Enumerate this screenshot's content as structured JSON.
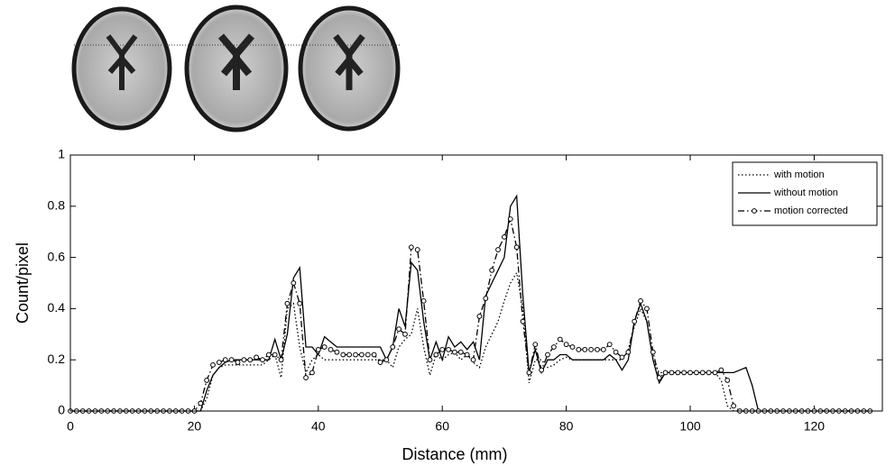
{
  "chart_data": {
    "type": "line",
    "xlabel": "Distance (mm)",
    "ylabel": "Count/pixel",
    "x": [
      0,
      1,
      2,
      3,
      4,
      5,
      6,
      7,
      8,
      9,
      10,
      11,
      12,
      13,
      14,
      15,
      16,
      17,
      18,
      19,
      20,
      21,
      22,
      23,
      24,
      25,
      26,
      27,
      28,
      29,
      30,
      31,
      32,
      33,
      34,
      35,
      36,
      37,
      38,
      39,
      40,
      41,
      42,
      43,
      44,
      45,
      46,
      47,
      48,
      49,
      50,
      51,
      52,
      53,
      54,
      55,
      56,
      57,
      58,
      59,
      60,
      61,
      62,
      63,
      64,
      65,
      66,
      67,
      68,
      69,
      70,
      71,
      72,
      73,
      74,
      75,
      76,
      77,
      78,
      79,
      80,
      81,
      82,
      83,
      84,
      85,
      86,
      87,
      88,
      89,
      90,
      91,
      92,
      93,
      94,
      95,
      96,
      97,
      98,
      99,
      100,
      101,
      102,
      103,
      104,
      105,
      106,
      107,
      108,
      109,
      110,
      111,
      112,
      113,
      114,
      115,
      116,
      117,
      118,
      119,
      120,
      121,
      122,
      123,
      124,
      125,
      126,
      127,
      128,
      129
    ],
    "series": [
      {
        "name": "with motion",
        "color": "#000000",
        "style": "dotted",
        "marker": "none",
        "values": [
          0,
          0,
          0,
          0,
          0,
          0,
          0,
          0,
          0,
          0,
          0,
          0,
          0,
          0,
          0,
          0,
          0,
          0,
          0,
          0,
          0,
          0,
          0.05,
          0.14,
          0.17,
          0.18,
          0.18,
          0.18,
          0.18,
          0.18,
          0.18,
          0.18,
          0.2,
          0.22,
          0.13,
          0.4,
          0.42,
          0.25,
          0.15,
          0.2,
          0.22,
          0.2,
          0.2,
          0.2,
          0.2,
          0.2,
          0.2,
          0.2,
          0.2,
          0.2,
          0.2,
          0.2,
          0.17,
          0.25,
          0.28,
          0.3,
          0.4,
          0.25,
          0.14,
          0.22,
          0.2,
          0.22,
          0.23,
          0.2,
          0.22,
          0.19,
          0.17,
          0.25,
          0.3,
          0.35,
          0.43,
          0.5,
          0.54,
          0.4,
          0.11,
          0.2,
          0.2,
          0.17,
          0.18,
          0.2,
          0.21,
          0.2,
          0.2,
          0.2,
          0.2,
          0.2,
          0.2,
          0.2,
          0.2,
          0.2,
          0.24,
          0.33,
          0.4,
          0.35,
          0.2,
          0.15,
          0.15,
          0.15,
          0.15,
          0.15,
          0.15,
          0.15,
          0.15,
          0.15,
          0.15,
          0.12,
          0.02,
          0,
          0,
          0,
          0,
          0,
          0,
          0,
          0,
          0,
          0,
          0,
          0,
          0,
          0,
          0,
          0,
          0,
          0,
          0,
          0,
          0,
          0,
          0
        ]
      },
      {
        "name": "without motion",
        "color": "#000000",
        "style": "solid",
        "marker": "none",
        "values": [
          0,
          0,
          0,
          0,
          0,
          0,
          0,
          0,
          0,
          0,
          0,
          0,
          0,
          0,
          0,
          0,
          0,
          0,
          0,
          0,
          0,
          0,
          0.08,
          0.14,
          0.17,
          0.19,
          0.2,
          0.2,
          0.2,
          0.2,
          0.2,
          0.2,
          0.2,
          0.28,
          0.2,
          0.3,
          0.52,
          0.56,
          0.25,
          0.25,
          0.22,
          0.29,
          0.27,
          0.25,
          0.25,
          0.25,
          0.25,
          0.25,
          0.25,
          0.25,
          0.25,
          0.2,
          0.25,
          0.4,
          0.33,
          0.58,
          0.55,
          0.35,
          0.2,
          0.27,
          0.2,
          0.29,
          0.25,
          0.27,
          0.24,
          0.27,
          0.2,
          0.45,
          0.5,
          0.55,
          0.6,
          0.8,
          0.84,
          0.45,
          0.15,
          0.24,
          0.15,
          0.2,
          0.2,
          0.22,
          0.22,
          0.2,
          0.2,
          0.2,
          0.2,
          0.2,
          0.2,
          0.22,
          0.2,
          0.16,
          0.2,
          0.35,
          0.42,
          0.35,
          0.2,
          0.11,
          0.15,
          0.15,
          0.15,
          0.15,
          0.15,
          0.15,
          0.15,
          0.15,
          0.15,
          0.15,
          0.15,
          0.15,
          0.16,
          0.17,
          0.1,
          0,
          0,
          0,
          0,
          0,
          0,
          0,
          0,
          0,
          0,
          0,
          0,
          0,
          0,
          0,
          0,
          0,
          0,
          0
        ]
      },
      {
        "name": "motion corrected",
        "color": "#000000",
        "style": "dashdot",
        "marker": "circle",
        "values": [
          0,
          0,
          0,
          0,
          0,
          0,
          0,
          0,
          0,
          0,
          0,
          0,
          0,
          0,
          0,
          0,
          0,
          0,
          0,
          0,
          0,
          0.03,
          0.12,
          0.18,
          0.19,
          0.2,
          0.2,
          0.19,
          0.2,
          0.2,
          0.21,
          0.2,
          0.22,
          0.22,
          0.2,
          0.42,
          0.5,
          0.42,
          0.13,
          0.15,
          0.24,
          0.25,
          0.24,
          0.23,
          0.22,
          0.22,
          0.22,
          0.22,
          0.22,
          0.22,
          0.19,
          0.2,
          0.25,
          0.32,
          0.3,
          0.64,
          0.63,
          0.43,
          0.2,
          0.22,
          0.24,
          0.24,
          0.23,
          0.23,
          0.22,
          0.2,
          0.37,
          0.44,
          0.55,
          0.63,
          0.68,
          0.75,
          0.64,
          0.35,
          0.15,
          0.26,
          0.16,
          0.22,
          0.25,
          0.28,
          0.26,
          0.25,
          0.24,
          0.24,
          0.24,
          0.24,
          0.24,
          0.26,
          0.23,
          0.21,
          0.23,
          0.35,
          0.43,
          0.4,
          0.23,
          0.13,
          0.15,
          0.15,
          0.15,
          0.15,
          0.15,
          0.15,
          0.15,
          0.15,
          0.15,
          0.16,
          0.12,
          0.02,
          0,
          0,
          0,
          0,
          0,
          0,
          0,
          0,
          0,
          0,
          0,
          0,
          0,
          0,
          0,
          0,
          0,
          0,
          0,
          0,
          0,
          0
        ]
      }
    ],
    "xlim": [
      0,
      131
    ],
    "ylim": [
      0,
      1
    ],
    "xticks": [
      0,
      20,
      40,
      60,
      80,
      100,
      120
    ],
    "yticks": [
      0,
      0.2,
      0.4,
      0.6,
      0.8,
      1
    ],
    "grid": false,
    "legend": "upper right"
  }
}
